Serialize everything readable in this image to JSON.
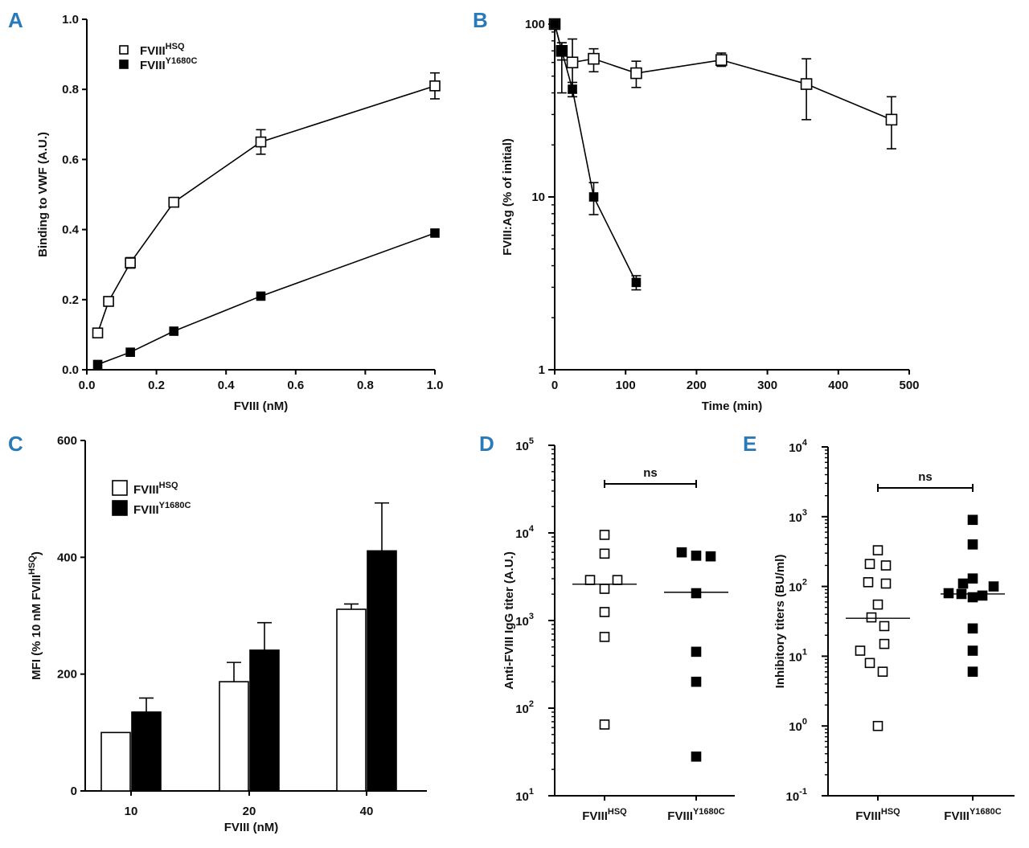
{
  "chart_data": [
    {
      "panel": "A",
      "type": "line",
      "xlabel": "FVIII (nM)",
      "ylabel": "Binding to VWF (A.U.)",
      "xlim": [
        0,
        1.0
      ],
      "ylim": [
        0,
        1.0
      ],
      "xticks": [
        "0.0",
        "0.2",
        "0.4",
        "0.6",
        "0.8",
        "1.0"
      ],
      "yticks": [
        "0.0",
        "0.2",
        "0.4",
        "0.6",
        "0.8",
        "1.0"
      ],
      "series": [
        {
          "name": "FVIII",
          "name_sup": "HSQ",
          "marker": "open-square",
          "x": [
            0.03125,
            0.0625,
            0.125,
            0.25,
            0.5,
            1.0
          ],
          "y": [
            0.105,
            0.195,
            0.305,
            0.478,
            0.65,
            0.81
          ],
          "err": [
            0.0,
            0.0,
            0.015,
            0.008,
            0.035,
            0.037
          ]
        },
        {
          "name": "FVIII",
          "name_sup": "Y1680C",
          "marker": "filled-square",
          "x": [
            0.03125,
            0.125,
            0.25,
            0.5,
            1.0
          ],
          "y": [
            0.015,
            0.05,
            0.11,
            0.21,
            0.39
          ],
          "err": [
            0,
            0,
            0,
            0,
            0
          ]
        }
      ]
    },
    {
      "panel": "B",
      "type": "line",
      "xlabel": "Time (min)",
      "ylabel": "FVIII:Ag (% of initial)",
      "yscale": "log",
      "xlim": [
        0,
        500
      ],
      "ylim": [
        1,
        100
      ],
      "xticks": [
        "0",
        "100",
        "200",
        "300",
        "400",
        "500"
      ],
      "yticks": [
        "1",
        "10",
        "100"
      ],
      "series": [
        {
          "name": "FVIII HSQ",
          "marker": "open-square",
          "x": [
            0,
            10,
            25,
            55,
            115,
            235,
            355,
            475
          ],
          "y": [
            100,
            70,
            60,
            63,
            52,
            62,
            45,
            28
          ],
          "err_low": [
            100,
            40,
            40,
            53,
            43,
            57,
            28,
            19
          ],
          "err_high": [
            100,
            78,
            82,
            72,
            61,
            68,
            63,
            38
          ]
        },
        {
          "name": "FVIII Y1680C",
          "marker": "filled-square",
          "x": [
            0,
            10,
            25,
            55,
            115
          ],
          "y": [
            100,
            70,
            42,
            10,
            3.2
          ],
          "err_low": [
            100,
            62,
            38,
            7.9,
            2.9
          ],
          "err_high": [
            100,
            78,
            46,
            12.1,
            3.5
          ]
        }
      ]
    },
    {
      "panel": "C",
      "type": "bar",
      "xlabel": "FVIII (nM)",
      "ylabel": "MFI (% 10 nM FVIII",
      "ylabel_sup": "HSQ",
      "ylabel_end": ")",
      "categories": [
        "10",
        "20",
        "40"
      ],
      "ylim": [
        0,
        600
      ],
      "yticks": [
        "0",
        "200",
        "400",
        "600"
      ],
      "series": [
        {
          "name": "FVIII",
          "name_sup": "HSQ",
          "fill": "open",
          "values": [
            100,
            187,
            311
          ],
          "err": [
            0,
            33,
            9
          ]
        },
        {
          "name": "FVIII",
          "name_sup": "Y1680C",
          "fill": "filled",
          "values": [
            135,
            241,
            411
          ],
          "err": [
            24,
            47,
            82
          ]
        }
      ]
    },
    {
      "panel": "D",
      "type": "scatter",
      "ylabel": "Anti-FVIII IgG titer (A.U.)",
      "yscale": "log",
      "ylim": [
        10,
        100000
      ],
      "yticks": [
        {
          "base": "10",
          "exp": "1"
        },
        {
          "base": "10",
          "exp": "2"
        },
        {
          "base": "10",
          "exp": "3"
        },
        {
          "base": "10",
          "exp": "4"
        },
        {
          "base": "10",
          "exp": "5"
        }
      ],
      "significance": "ns",
      "groups": [
        {
          "label": "FVIII",
          "label_sup": "HSQ",
          "marker": "open-square",
          "median": 2600,
          "points": [
            9500,
            5800,
            2900,
            2900,
            2300,
            1250,
            650,
            65
          ],
          "jitter": [
            0,
            0,
            -18,
            16,
            0,
            0,
            0,
            0
          ]
        },
        {
          "label": "FVIII",
          "label_sup": "Y1680C",
          "marker": "filled-square",
          "median": 2100,
          "points": [
            6000,
            5500,
            5400,
            2050,
            440,
            200,
            28
          ],
          "jitter": [
            -18,
            0,
            18,
            0,
            0,
            0,
            0
          ]
        }
      ]
    },
    {
      "panel": "E",
      "type": "scatter",
      "ylabel": "Inhibitory titers (BU/ml)",
      "yscale": "log",
      "ylim": [
        0.1,
        10000
      ],
      "yticks": [
        {
          "base": "10",
          "exp": "-1"
        },
        {
          "base": "10",
          "exp": "0"
        },
        {
          "base": "10",
          "exp": "1"
        },
        {
          "base": "10",
          "exp": "2"
        },
        {
          "base": "10",
          "exp": "3"
        },
        {
          "base": "10",
          "exp": "4"
        }
      ],
      "significance": "ns",
      "groups": [
        {
          "label": "FVIII",
          "label_sup": "HSQ",
          "marker": "open-square",
          "median": 35,
          "points": [
            330,
            210,
            200,
            115,
            110,
            55,
            36,
            27,
            15,
            12,
            8,
            6,
            1
          ],
          "jitter": [
            0,
            -10,
            10,
            -12,
            10,
            0,
            -8,
            8,
            8,
            -22,
            -10,
            6,
            0
          ]
        },
        {
          "label": "FVIII",
          "label_sup": "Y1680C",
          "marker": "filled-square",
          "median": 78,
          "points": [
            900,
            400,
            130,
            110,
            100,
            80,
            78,
            74,
            70,
            25,
            12,
            6
          ],
          "jitter": [
            0,
            0,
            0,
            -12,
            26,
            -30,
            -14,
            12,
            0,
            0,
            0,
            0
          ]
        }
      ]
    }
  ]
}
